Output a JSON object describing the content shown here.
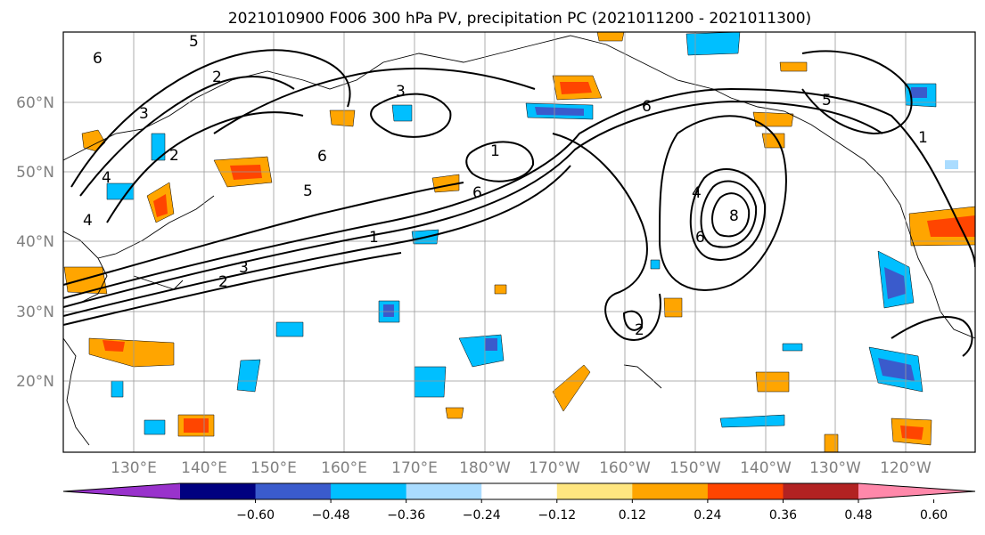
{
  "title": "2021010900 F006 300 hPa PV, precipitation PC (2021011200 - 2021011300)",
  "lat_labels": [
    "60°N",
    "50°N",
    "40°N",
    "30°N",
    "20°N"
  ],
  "lon_labels": [
    "130°E",
    "140°E",
    "150°E",
    "160°E",
    "170°E",
    "180°W",
    "170°W",
    "160°W",
    "150°W",
    "140°W",
    "130°W",
    "120°W"
  ],
  "colorbar": {
    "colors": [
      "#9932cc",
      "#000080",
      "#3a5bcc",
      "#00bfff",
      "#aadcff",
      "#ffffff",
      "#ffe680",
      "#ffa500",
      "#ff4500",
      "#b22222",
      "#ff88aa"
    ],
    "ticks": [
      "−0.60",
      "−0.48",
      "−0.36",
      "−0.24",
      "−0.12",
      "0.12",
      "0.24",
      "0.36",
      "0.48",
      "0.60"
    ]
  },
  "contour_labels": [
    "6",
    "5",
    "2",
    "3",
    "1",
    "4",
    "6",
    "5",
    "6",
    "1",
    "2",
    "3",
    "4",
    "6",
    "5",
    "8",
    "3",
    "2",
    "1",
    "2",
    "6",
    "4"
  ]
}
